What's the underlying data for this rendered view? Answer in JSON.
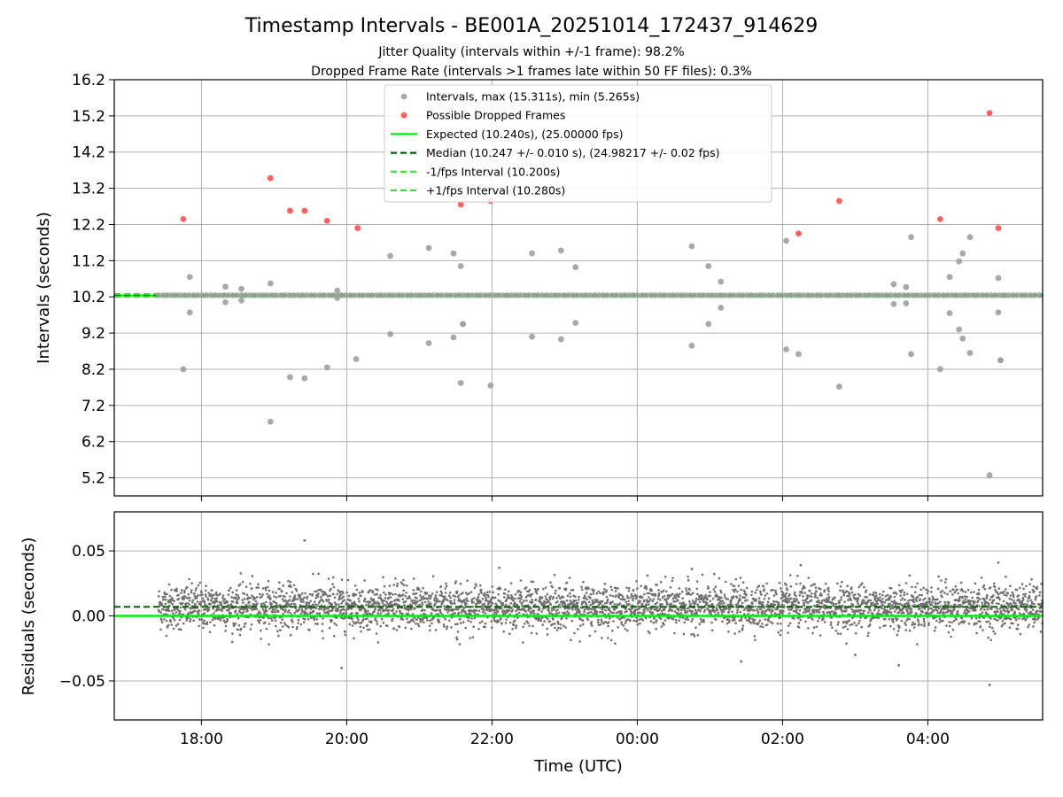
{
  "header": {
    "title": "Timestamp Intervals - BE001A_20251014_172437_914629",
    "subtitle1": "Jitter Quality (intervals within +/-1 frame): 98.2%",
    "subtitle2": "Dropped Frame Rate (intervals >1 frames late within 50 FF files): 0.3%"
  },
  "colors": {
    "intervals": "#a0a0a0",
    "dropped": "#ff5050",
    "expected": "#00ee00",
    "median": "#006400",
    "bounds": "#22ee22",
    "residuals": "#707070",
    "grid": "#b0b0b0"
  },
  "chart_data": [
    {
      "type": "scatter",
      "panel": "intervals",
      "ylabel": "Intervals (seconds)",
      "ylim": [
        4.7,
        16.2
      ],
      "xlim_hours": [
        16.8,
        29.58
      ],
      "yticks": [
        5.2,
        6.2,
        7.2,
        8.2,
        9.2,
        10.2,
        11.2,
        12.2,
        13.2,
        14.2,
        15.2,
        16.2
      ],
      "ytick_labels": [
        "5.2",
        "6.2",
        "7.2",
        "8.2",
        "9.2",
        "10.2",
        "11.2",
        "12.2",
        "13.2",
        "14.2",
        "15.2",
        "16.2"
      ],
      "grid": true,
      "legend_position": "top-center",
      "legend": [
        {
          "key": "intervals",
          "label": "Intervals, max (15.311s), min (5.265s)",
          "kind": "marker"
        },
        {
          "key": "dropped",
          "label": "Possible Dropped Frames",
          "kind": "marker"
        },
        {
          "key": "expected",
          "label": "Expected (10.240s), (25.00000 fps)",
          "kind": "solid"
        },
        {
          "key": "median",
          "label": "Median (10.247 +/- 0.010 s), (24.98217 +/- 0.02 fps)",
          "kind": "dashed"
        },
        {
          "key": "lower",
          "label": "-1/fps Interval (10.200s)",
          "kind": "dashed"
        },
        {
          "key": "upper",
          "label": "+1/fps Interval (10.280s)",
          "kind": "dashed"
        }
      ],
      "expected": 10.24,
      "median": 10.247,
      "lower_bound": 10.2,
      "upper_bound": 10.28,
      "baseline_start_hours": 17.41,
      "baseline_value": 10.245,
      "series": [
        {
          "name": "Intervals",
          "x_hours": [
            17.75,
            17.84,
            17.84,
            18.33,
            18.33,
            18.55,
            18.55,
            18.95,
            18.95,
            19.22,
            19.42,
            19.73,
            19.87,
            19.87,
            20.13,
            20.6,
            20.6,
            21.13,
            21.13,
            21.47,
            21.47,
            21.57,
            21.57,
            21.6,
            21.6,
            21.98,
            22.55,
            22.55,
            22.95,
            22.95,
            23.15,
            23.15,
            24.75,
            24.75,
            24.98,
            24.98,
            25.15,
            25.15,
            26.05,
            26.05,
            26.22,
            26.78,
            27.53,
            27.53,
            27.7,
            27.7,
            27.77,
            27.77,
            28.17,
            28.3,
            28.3,
            28.43,
            28.43,
            28.48,
            28.48,
            28.58,
            28.58,
            28.85,
            28.97,
            28.97,
            29.0,
            29.0
          ],
          "values": [
            8.2,
            10.75,
            9.77,
            10.48,
            10.05,
            10.42,
            10.1,
            10.57,
            6.75,
            7.98,
            7.95,
            8.25,
            10.37,
            10.17,
            8.48,
            11.33,
            9.17,
            11.55,
            8.92,
            11.4,
            9.08,
            11.05,
            7.82,
            9.45,
            9.45,
            7.75,
            11.4,
            9.1,
            11.48,
            9.03,
            11.02,
            9.48,
            11.6,
            8.85,
            11.05,
            9.45,
            10.62,
            9.9,
            11.75,
            8.75,
            8.62,
            7.72,
            10.55,
            10.0,
            10.47,
            10.02,
            11.85,
            8.62,
            8.2,
            10.75,
            9.75,
            11.18,
            9.3,
            11.4,
            9.05,
            11.85,
            8.65,
            5.27,
            10.72,
            9.77,
            8.45,
            8.45
          ]
        },
        {
          "name": "Possible Dropped Frames",
          "x_hours": [
            17.75,
            18.95,
            19.22,
            19.42,
            19.73,
            20.15,
            21.57,
            21.98,
            26.22,
            26.78,
            28.17,
            28.85,
            28.97
          ],
          "values": [
            12.35,
            13.48,
            12.58,
            12.58,
            12.3,
            12.1,
            12.75,
            12.85,
            11.95,
            12.85,
            12.35,
            15.28,
            12.1
          ]
        }
      ]
    },
    {
      "type": "scatter",
      "panel": "residuals",
      "xlabel": "Time (UTC)",
      "ylabel": "Residuals (seconds)",
      "ylim": [
        -0.08,
        0.08
      ],
      "xlim_hours": [
        16.8,
        29.58
      ],
      "yticks": [
        -0.05,
        0.0,
        0.05
      ],
      "ytick_labels": [
        "−0.05",
        "0.00",
        "0.05"
      ],
      "xtick_hours": [
        18,
        20,
        22,
        24,
        26,
        28
      ],
      "xtick_labels": [
        "18:00",
        "20:00",
        "22:00",
        "00:00",
        "02:00",
        "04:00"
      ],
      "expected_residual": 0.0,
      "median_residual": 0.007,
      "sample_start_hours": 17.41,
      "sample_end_hours": 29.58,
      "sample_count": 4200,
      "residual_center": 0.007,
      "residual_std": 0.0085,
      "outliers": {
        "x_hours": [
          19.42,
          19.93,
          24.75,
          25.43,
          27.0,
          27.6,
          28.85,
          28.97,
          26.25,
          22.1
        ],
        "values": [
          0.058,
          -0.04,
          0.036,
          -0.035,
          -0.03,
          -0.038,
          -0.053,
          0.041,
          0.039,
          0.037
        ]
      }
    }
  ]
}
